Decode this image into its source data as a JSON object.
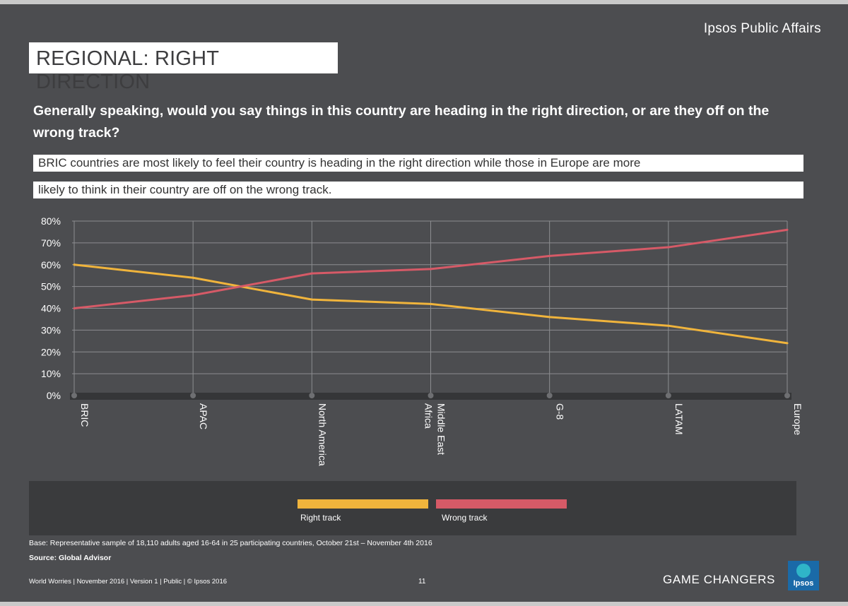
{
  "brand": "Ipsos Public Affairs",
  "title": "REGIONAL: RIGHT DIRECTION",
  "question": "Generally speaking, would you say things in this country are heading in the right direction, or are they off on the wrong track?",
  "highlight_line1": "BRIC countries are most likely to feel their country is heading in the right direction while those in Europe are more",
  "highlight_line2": "likely to think in their country are off on the wrong track.",
  "base_note": "Base: Representative sample of 18,110 adults aged 16-64 in 25 participating countries, October 21st – November 4th 2016",
  "source_note": "Source: Global Advisor",
  "footer": "World Worries | November 2016 | Version 1 | Public | © Ipsos 2016",
  "page_number": "11",
  "tagline": "GAME CHANGERS",
  "logo_text": "Ipsos",
  "colors": {
    "background": "#4c4d50",
    "right_track": "#f0b43c",
    "wrong_track": "#d65a67",
    "grid": "#8c8d90"
  },
  "chart_data": {
    "type": "line",
    "categories": [
      "BRIC",
      "APAC",
      "North America",
      "Middle East Africa",
      "G-8",
      "LATAM",
      "Europe"
    ],
    "category_labels": [
      [
        "BRIC"
      ],
      [
        "APAC"
      ],
      [
        "North America"
      ],
      [
        "Middle East",
        "Africa"
      ],
      [
        "G-8"
      ],
      [
        "LATAM"
      ],
      [
        "Europe"
      ]
    ],
    "series": [
      {
        "name": "Right track",
        "color": "#f0b43c",
        "values": [
          60,
          54,
          44,
          42,
          36,
          32,
          24
        ]
      },
      {
        "name": "Wrong track",
        "color": "#d65a67",
        "values": [
          40,
          46,
          56,
          58,
          64,
          68,
          76
        ]
      }
    ],
    "y_ticks": [
      "0%",
      "10%",
      "20%",
      "30%",
      "40%",
      "50%",
      "60%",
      "70%",
      "80%"
    ],
    "ylim": [
      0,
      80
    ],
    "grid": true,
    "legend_position": "bottom"
  }
}
